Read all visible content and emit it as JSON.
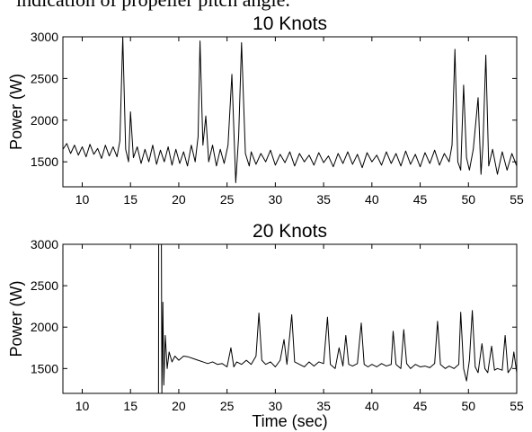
{
  "caption": "indication of propeller pitch angle.",
  "chart_data": [
    {
      "type": "line",
      "title": "10 Knots",
      "ylabel": "Power (W)",
      "xlim": [
        8,
        55
      ],
      "ylim": [
        1200,
        3000
      ],
      "xticks": [
        10,
        15,
        20,
        25,
        30,
        35,
        40,
        45,
        50,
        55
      ],
      "yticks": [
        1500,
        2000,
        2500,
        3000
      ],
      "color": "#000000",
      "x": [
        8,
        8.4,
        8.8,
        9.2,
        9.6,
        10,
        10.4,
        10.8,
        11.2,
        11.6,
        12,
        12.4,
        12.8,
        13.2,
        13.6,
        13.9,
        14.2,
        14.5,
        14.8,
        15,
        15.3,
        15.7,
        16.1,
        16.5,
        16.9,
        17.3,
        17.7,
        18.1,
        18.5,
        18.9,
        19.3,
        19.7,
        20.1,
        20.5,
        20.9,
        21.3,
        21.7,
        22,
        22.2,
        22.5,
        22.8,
        23.1,
        23.5,
        23.9,
        24.3,
        24.7,
        25.1,
        25.5,
        25.9,
        26.2,
        26.5,
        26.9,
        27.3,
        27.5,
        28,
        28.5,
        29,
        29.5,
        30,
        30.5,
        31,
        31.5,
        32,
        32.5,
        33,
        33.5,
        34,
        34.5,
        35,
        35.5,
        36,
        36.5,
        37,
        37.5,
        38,
        38.5,
        39,
        39.5,
        40,
        40.5,
        41,
        41.5,
        42,
        42.5,
        43,
        43.5,
        44,
        44.5,
        45,
        45.5,
        46,
        46.5,
        47,
        47.5,
        48,
        48.3,
        48.6,
        48.9,
        49.2,
        49.5,
        49.8,
        50.1,
        50.5,
        51,
        51.3,
        51.5,
        51.8,
        52.1,
        52.5,
        53,
        53.5,
        54,
        54.5,
        55
      ],
      "values": [
        1650,
        1720,
        1600,
        1700,
        1580,
        1680,
        1560,
        1710,
        1590,
        1660,
        1540,
        1700,
        1570,
        1680,
        1560,
        1750,
        3000,
        1650,
        1500,
        2100,
        1550,
        1680,
        1480,
        1650,
        1500,
        1700,
        1470,
        1640,
        1500,
        1680,
        1460,
        1650,
        1480,
        1620,
        1450,
        1700,
        1500,
        1800,
        2950,
        1700,
        2050,
        1500,
        1700,
        1450,
        1650,
        1480,
        1700,
        2550,
        1250,
        1800,
        2930,
        1600,
        1450,
        1620,
        1470,
        1600,
        1500,
        1640,
        1460,
        1590,
        1490,
        1620,
        1450,
        1600,
        1500,
        1580,
        1460,
        1610,
        1490,
        1570,
        1440,
        1600,
        1480,
        1620,
        1470,
        1590,
        1430,
        1610,
        1500,
        1580,
        1460,
        1620,
        1480,
        1600,
        1450,
        1630,
        1470,
        1590,
        1440,
        1610,
        1480,
        1640,
        1460,
        1600,
        1500,
        1700,
        2850,
        1500,
        1400,
        2420,
        1550,
        1400,
        1650,
        2270,
        1350,
        1700,
        2780,
        1450,
        1650,
        1350,
        1620,
        1400,
        1600,
        1450
      ]
    },
    {
      "type": "line",
      "title": "20 Knots",
      "ylabel": "Power (W)",
      "xlabel": "Time (sec)",
      "xlim": [
        8,
        55
      ],
      "ylim": [
        1200,
        3000
      ],
      "xticks": [
        10,
        15,
        20,
        25,
        30,
        35,
        40,
        45,
        50,
        55
      ],
      "yticks": [
        1500,
        2000,
        2500,
        3000
      ],
      "color": "#000000",
      "x": [
        17.9,
        17.92,
        18.2,
        18.25,
        18.35,
        18.45,
        18.6,
        18.8,
        19,
        19.3,
        19.6,
        20,
        20.5,
        21,
        21.5,
        22,
        22.5,
        23,
        23.5,
        24,
        24.5,
        25,
        25.4,
        25.7,
        26,
        26.5,
        27,
        27.5,
        28,
        28.3,
        28.6,
        29,
        29.5,
        30,
        30.5,
        30.9,
        31.2,
        31.7,
        32,
        32.5,
        33,
        33.5,
        34,
        34.5,
        35,
        35.4,
        35.7,
        36.2,
        36.6,
        37,
        37.3,
        37.6,
        38,
        38.5,
        38.9,
        39.2,
        39.6,
        40,
        40.5,
        41,
        41.5,
        42,
        42.2,
        42.5,
        43,
        43.3,
        43.6,
        44,
        44.5,
        45,
        45.5,
        46,
        46.5,
        46.8,
        47.1,
        47.6,
        48,
        48.5,
        49,
        49.2,
        49.5,
        49.8,
        50.1,
        50.4,
        50.7,
        51,
        51.4,
        51.7,
        52,
        52.4,
        52.7,
        53,
        53.5,
        53.8,
        54.1,
        54.5,
        54.7,
        55
      ],
      "values": [
        1200,
        3000,
        3000,
        1200,
        2300,
        1300,
        1900,
        1500,
        1700,
        1580,
        1650,
        1600,
        1650,
        1640,
        1620,
        1600,
        1580,
        1560,
        1580,
        1550,
        1560,
        1520,
        1750,
        1520,
        1580,
        1550,
        1600,
        1550,
        1650,
        2170,
        1600,
        1550,
        1580,
        1520,
        1600,
        1850,
        1550,
        2150,
        1580,
        1550,
        1520,
        1580,
        1530,
        1580,
        1560,
        2120,
        1550,
        1500,
        1750,
        1530,
        1900,
        1550,
        1530,
        1560,
        2050,
        1550,
        1520,
        1550,
        1520,
        1560,
        1530,
        1550,
        1950,
        1550,
        1500,
        1970,
        1560,
        1500,
        1550,
        1520,
        1530,
        1510,
        1560,
        2070,
        1550,
        1500,
        1530,
        1500,
        1550,
        2180,
        1500,
        1350,
        1600,
        2200,
        1520,
        1450,
        1800,
        1500,
        1450,
        1770,
        1480,
        1500,
        1480,
        1900,
        1450,
        1520,
        1700,
        1450
      ]
    }
  ]
}
